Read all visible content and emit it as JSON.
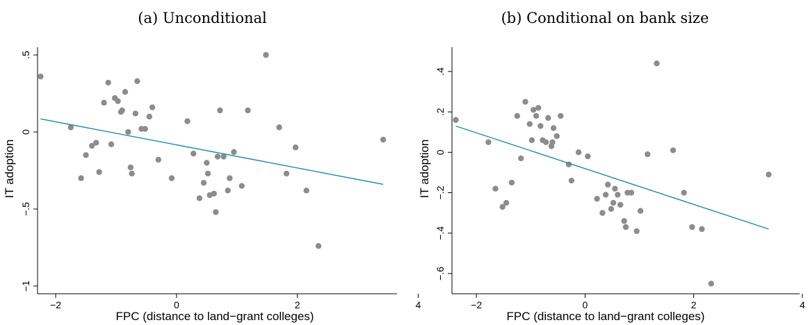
{
  "colors": {
    "point": "#8c8c8c",
    "fit_line": "#1a8ab0"
  },
  "chart_data": [
    {
      "type": "scatter",
      "title": "(a) Unconditional",
      "xlabel": "FPC (distance to land−grant colleges)",
      "ylabel": "IT adoption",
      "xlim": [
        -2.3,
        3.65
      ],
      "ylim": [
        -1.05,
        0.55
      ],
      "xticks": [
        -2,
        0,
        2,
        4
      ],
      "xtick_labels": [
        "−2",
        "0",
        "2",
        "4"
      ],
      "yticks": [
        -1,
        -0.5,
        0,
        0.5
      ],
      "ytick_labels": [
        "−1",
        "−.5",
        "0",
        ".5"
      ],
      "grid": false,
      "fit_line": {
        "x": [
          -2.25,
          3.42
        ],
        "y": [
          0.085,
          -0.34
        ]
      },
      "points": [
        {
          "x": -2.25,
          "y": 0.36
        },
        {
          "x": -1.75,
          "y": 0.03
        },
        {
          "x": -1.58,
          "y": -0.3
        },
        {
          "x": -1.5,
          "y": -0.15
        },
        {
          "x": -1.4,
          "y": -0.09
        },
        {
          "x": -1.33,
          "y": -0.07
        },
        {
          "x": -1.28,
          "y": -0.26
        },
        {
          "x": -1.2,
          "y": 0.19
        },
        {
          "x": -1.13,
          "y": 0.32
        },
        {
          "x": -1.08,
          "y": -0.08
        },
        {
          "x": -1.02,
          "y": 0.22
        },
        {
          "x": -0.97,
          "y": 0.2
        },
        {
          "x": -0.92,
          "y": 0.13
        },
        {
          "x": -0.9,
          "y": 0.14
        },
        {
          "x": -0.85,
          "y": 0.26
        },
        {
          "x": -0.8,
          "y": 0.0
        },
        {
          "x": -0.76,
          "y": -0.23
        },
        {
          "x": -0.74,
          "y": -0.27
        },
        {
          "x": -0.68,
          "y": 0.12
        },
        {
          "x": -0.65,
          "y": 0.33
        },
        {
          "x": -0.58,
          "y": 0.02
        },
        {
          "x": -0.52,
          "y": 0.02
        },
        {
          "x": -0.45,
          "y": 0.1
        },
        {
          "x": -0.4,
          "y": 0.16
        },
        {
          "x": -0.3,
          "y": -0.18
        },
        {
          "x": -0.08,
          "y": -0.3
        },
        {
          "x": 0.18,
          "y": 0.07
        },
        {
          "x": 0.28,
          "y": -0.14
        },
        {
          "x": 0.38,
          "y": -0.43
        },
        {
          "x": 0.45,
          "y": -0.33
        },
        {
          "x": 0.5,
          "y": -0.2
        },
        {
          "x": 0.52,
          "y": -0.27
        },
        {
          "x": 0.55,
          "y": -0.41
        },
        {
          "x": 0.62,
          "y": -0.4
        },
        {
          "x": 0.65,
          "y": -0.52
        },
        {
          "x": 0.68,
          "y": -0.16
        },
        {
          "x": 0.72,
          "y": 0.14
        },
        {
          "x": 0.78,
          "y": -0.16
        },
        {
          "x": 0.85,
          "y": -0.38
        },
        {
          "x": 0.88,
          "y": -0.3
        },
        {
          "x": 0.95,
          "y": -0.13
        },
        {
          "x": 1.08,
          "y": -0.35
        },
        {
          "x": 1.18,
          "y": 0.14
        },
        {
          "x": 1.48,
          "y": 0.5
        },
        {
          "x": 1.7,
          "y": 0.03
        },
        {
          "x": 1.82,
          "y": -0.27
        },
        {
          "x": 1.97,
          "y": -0.1
        },
        {
          "x": 2.15,
          "y": -0.38
        },
        {
          "x": 2.35,
          "y": -0.74
        },
        {
          "x": 3.42,
          "y": -0.05
        }
      ]
    },
    {
      "type": "scatter",
      "title": "(b) Conditional on bank size",
      "xlabel": "FPC (distance to land−grant colleges)",
      "ylabel": "IT adoption",
      "xlim": [
        -2.45,
        3.95
      ],
      "ylim": [
        -0.7,
        0.52
      ],
      "xticks": [
        -2,
        0,
        2,
        4
      ],
      "xtick_labels": [
        "−2",
        "0",
        "2",
        "4"
      ],
      "yticks": [
        -0.6,
        -0.4,
        -0.2,
        0,
        0.2,
        0.4
      ],
      "ytick_labels": [
        "−.6",
        "−.4",
        "−.2",
        "0",
        ".2",
        ".4"
      ],
      "grid": false,
      "fit_line": {
        "x": [
          -2.38,
          3.38
        ],
        "y": [
          0.13,
          -0.38
        ]
      },
      "points": [
        {
          "x": -2.38,
          "y": 0.16
        },
        {
          "x": -1.78,
          "y": 0.05
        },
        {
          "x": -1.65,
          "y": -0.18
        },
        {
          "x": -1.52,
          "y": -0.27
        },
        {
          "x": -1.45,
          "y": -0.25
        },
        {
          "x": -1.35,
          "y": -0.15
        },
        {
          "x": -1.25,
          "y": 0.18
        },
        {
          "x": -1.18,
          "y": -0.03
        },
        {
          "x": -1.1,
          "y": 0.25
        },
        {
          "x": -1.02,
          "y": 0.14
        },
        {
          "x": -0.98,
          "y": 0.06
        },
        {
          "x": -0.95,
          "y": 0.21
        },
        {
          "x": -0.9,
          "y": 0.18
        },
        {
          "x": -0.86,
          "y": 0.22
        },
        {
          "x": -0.82,
          "y": 0.13
        },
        {
          "x": -0.78,
          "y": 0.06
        },
        {
          "x": -0.72,
          "y": 0.05
        },
        {
          "x": -0.68,
          "y": 0.17
        },
        {
          "x": -0.62,
          "y": 0.03
        },
        {
          "x": -0.6,
          "y": 0.05
        },
        {
          "x": -0.58,
          "y": 0.12
        },
        {
          "x": -0.52,
          "y": 0.08
        },
        {
          "x": -0.45,
          "y": 0.18
        },
        {
          "x": -0.3,
          "y": -0.06
        },
        {
          "x": -0.25,
          "y": -0.14
        },
        {
          "x": -0.12,
          "y": 0.0
        },
        {
          "x": 0.05,
          "y": -0.02
        },
        {
          "x": 0.22,
          "y": -0.23
        },
        {
          "x": 0.32,
          "y": -0.3
        },
        {
          "x": 0.38,
          "y": -0.21
        },
        {
          "x": 0.42,
          "y": -0.16
        },
        {
          "x": 0.48,
          "y": -0.28
        },
        {
          "x": 0.52,
          "y": -0.25
        },
        {
          "x": 0.55,
          "y": -0.18
        },
        {
          "x": 0.6,
          "y": -0.21
        },
        {
          "x": 0.65,
          "y": -0.26
        },
        {
          "x": 0.72,
          "y": -0.34
        },
        {
          "x": 0.75,
          "y": -0.37
        },
        {
          "x": 0.78,
          "y": -0.2
        },
        {
          "x": 0.85,
          "y": -0.2
        },
        {
          "x": 0.95,
          "y": -0.39
        },
        {
          "x": 1.02,
          "y": -0.29
        },
        {
          "x": 1.15,
          "y": -0.01
        },
        {
          "x": 1.32,
          "y": 0.44
        },
        {
          "x": 1.62,
          "y": 0.01
        },
        {
          "x": 1.82,
          "y": -0.2
        },
        {
          "x": 1.97,
          "y": -0.37
        },
        {
          "x": 2.15,
          "y": -0.38
        },
        {
          "x": 2.32,
          "y": -0.65
        },
        {
          "x": 3.38,
          "y": -0.11
        }
      ]
    }
  ]
}
